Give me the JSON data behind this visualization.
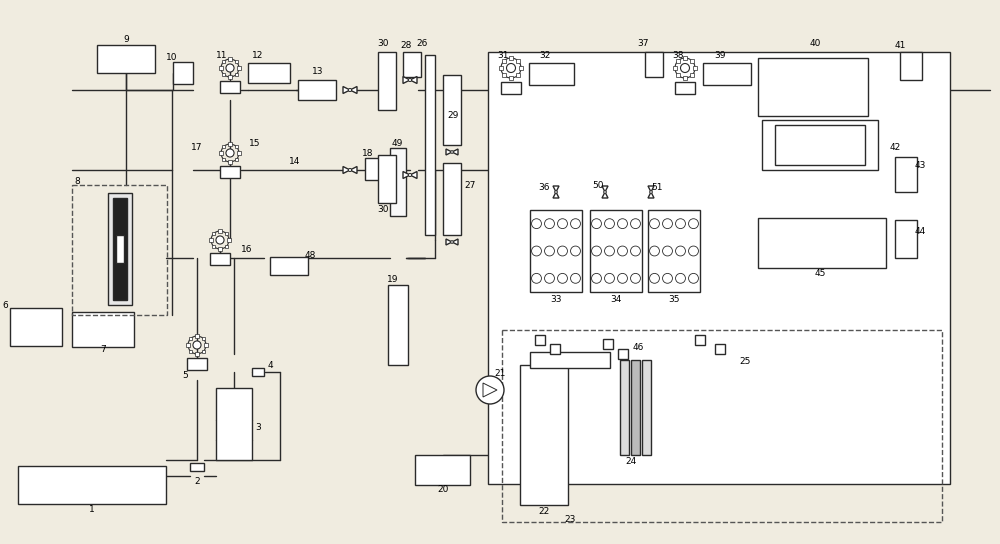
{
  "bg_color": "#f0ece0",
  "line_color": "#2a2a2a",
  "lw": 1.0
}
